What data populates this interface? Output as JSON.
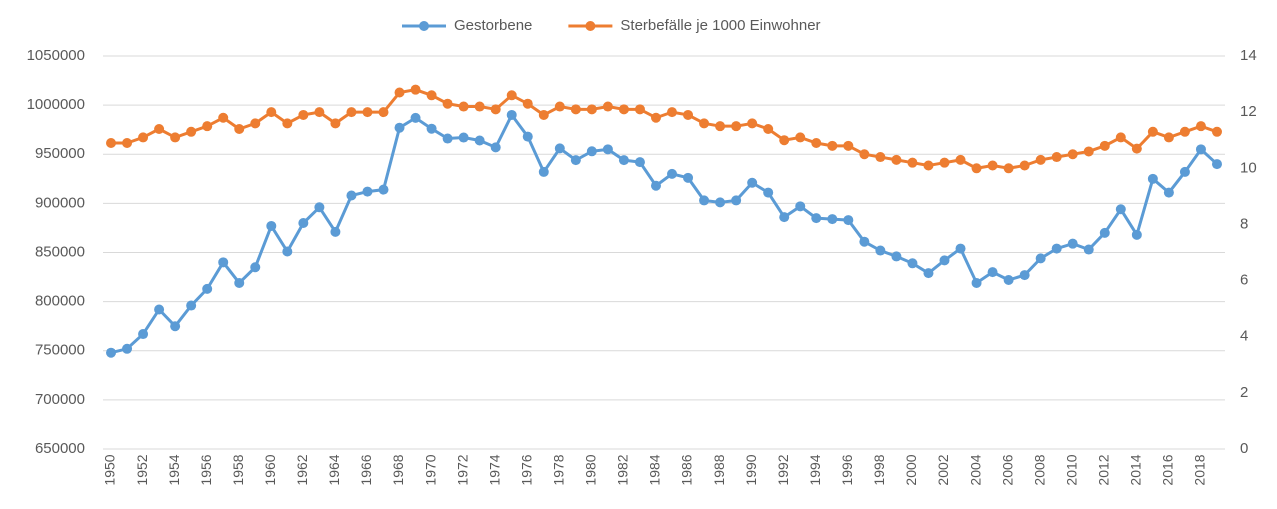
{
  "chart_data": {
    "type": "line",
    "categories": [
      "1950",
      null,
      "1952",
      null,
      "1954",
      null,
      "1956",
      null,
      "1958",
      null,
      "1960",
      null,
      "1962",
      null,
      "1964",
      null,
      "1966",
      null,
      "1968",
      null,
      "1970",
      null,
      "1972",
      null,
      "1974",
      null,
      "1976",
      null,
      "1978",
      null,
      "1980",
      null,
      "1982",
      null,
      "1984",
      null,
      "1986",
      null,
      "1988",
      null,
      "1990",
      null,
      "1992",
      null,
      "1994",
      null,
      "1996",
      null,
      "1998",
      null,
      "2000",
      null,
      "2002",
      null,
      "2004",
      null,
      "2006",
      null,
      "2008",
      null,
      "2010",
      null,
      "2012",
      null,
      "2014",
      null,
      "2016",
      null,
      "2018",
      null
    ],
    "series": [
      {
        "name": "Gestorbene",
        "color": "#5b9bd5",
        "values": [
          748000,
          752000,
          767000,
          792000,
          775000,
          796000,
          813000,
          840000,
          819000,
          835000,
          877000,
          851000,
          880000,
          896000,
          871000,
          908000,
          912000,
          914000,
          977000,
          987000,
          976000,
          966000,
          967000,
          964000,
          957000,
          990000,
          968000,
          932000,
          956000,
          944000,
          953000,
          955000,
          944000,
          942000,
          918000,
          930000,
          926000,
          903000,
          901000,
          903000,
          921000,
          911000,
          886000,
          897000,
          885000,
          884000,
          883000,
          861000,
          852000,
          846000,
          839000,
          829000,
          842000,
          854000,
          819000,
          830000,
          822000,
          827000,
          844000,
          854000,
          859000,
          853000,
          870000,
          894000,
          868000,
          925000,
          911000,
          932000,
          955000,
          940000
        ]
      },
      {
        "name": "Sterbefälle je 1000 Einwohner",
        "color": "#ed7d31",
        "axis": "y2",
        "values": [
          10.9,
          10.9,
          11.1,
          11.4,
          11.1,
          11.3,
          11.5,
          11.8,
          11.4,
          11.6,
          12.0,
          11.6,
          11.9,
          12.0,
          11.6,
          12.0,
          12.0,
          12.0,
          12.7,
          12.8,
          12.6,
          12.3,
          12.2,
          12.2,
          12.1,
          12.6,
          12.3,
          11.9,
          12.2,
          12.1,
          12.1,
          12.2,
          12.1,
          12.1,
          11.8,
          12.0,
          11.9,
          11.6,
          11.5,
          11.5,
          11.6,
          11.4,
          11.0,
          11.1,
          10.9,
          10.8,
          10.8,
          10.5,
          10.4,
          10.3,
          10.2,
          10.1,
          10.2,
          10.3,
          10.0,
          10.1,
          10.0,
          10.1,
          10.3,
          10.4,
          10.5,
          10.6,
          10.8,
          11.1,
          10.7,
          11.3,
          11.1,
          11.3,
          11.5,
          11.3
        ]
      }
    ],
    "ylim": [
      650000,
      1050000
    ],
    "yticks": [
      650000,
      700000,
      750000,
      800000,
      850000,
      900000,
      950000,
      1000000,
      1050000
    ],
    "y2lim": [
      0,
      14
    ],
    "y2ticks": [
      0,
      2,
      4,
      6,
      8,
      10,
      12,
      14
    ],
    "grid": true,
    "legend": "top"
  }
}
